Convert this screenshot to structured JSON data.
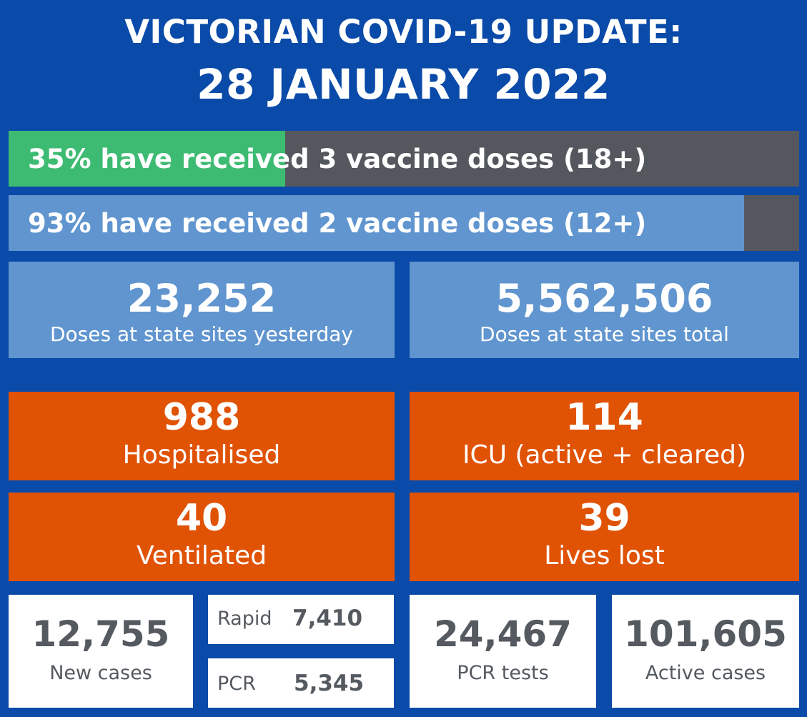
{
  "title": {
    "line1": "VICTORIAN COVID-19 UPDATE:",
    "line2": "28 JANUARY 2022"
  },
  "vaccination_bars": [
    {
      "label": "35% have received 3 vaccine doses (18+)",
      "percent": 35,
      "fill_color": "#3dbb72"
    },
    {
      "label": "93% have received 2 vaccine doses (12+)",
      "percent": 93,
      "fill_color": "#6095cf"
    }
  ],
  "doses": {
    "yesterday": {
      "value": "23,252",
      "label": "Doses at state sites yesterday"
    },
    "total": {
      "value": "5,562,506",
      "label": "Doses at state sites total"
    }
  },
  "hospital": {
    "hospitalised": {
      "value": "988",
      "label": "Hospitalised"
    },
    "icu": {
      "value": "114",
      "label": "ICU (active + cleared)"
    },
    "ventilated": {
      "value": "40",
      "label": "Ventilated"
    },
    "lives_lost": {
      "value": "39",
      "label": "Lives lost"
    }
  },
  "cases": {
    "new_cases": {
      "value": "12,755",
      "label": "New cases"
    },
    "rapid": {
      "label": "Rapid",
      "value": "7,410"
    },
    "pcr": {
      "label": "PCR",
      "value": "5,345"
    },
    "pcr_tests": {
      "value": "24,467",
      "label": "PCR tests"
    },
    "active_cases": {
      "value": "101,605",
      "label": "Active cases"
    }
  },
  "colors": {
    "background": "#0a4aa8",
    "bar_remaining": "#54585e",
    "dose_box": "#6095cf",
    "stat_box": "#e05204",
    "white_box": "#ffffff",
    "white_box_text": "#545a60"
  }
}
